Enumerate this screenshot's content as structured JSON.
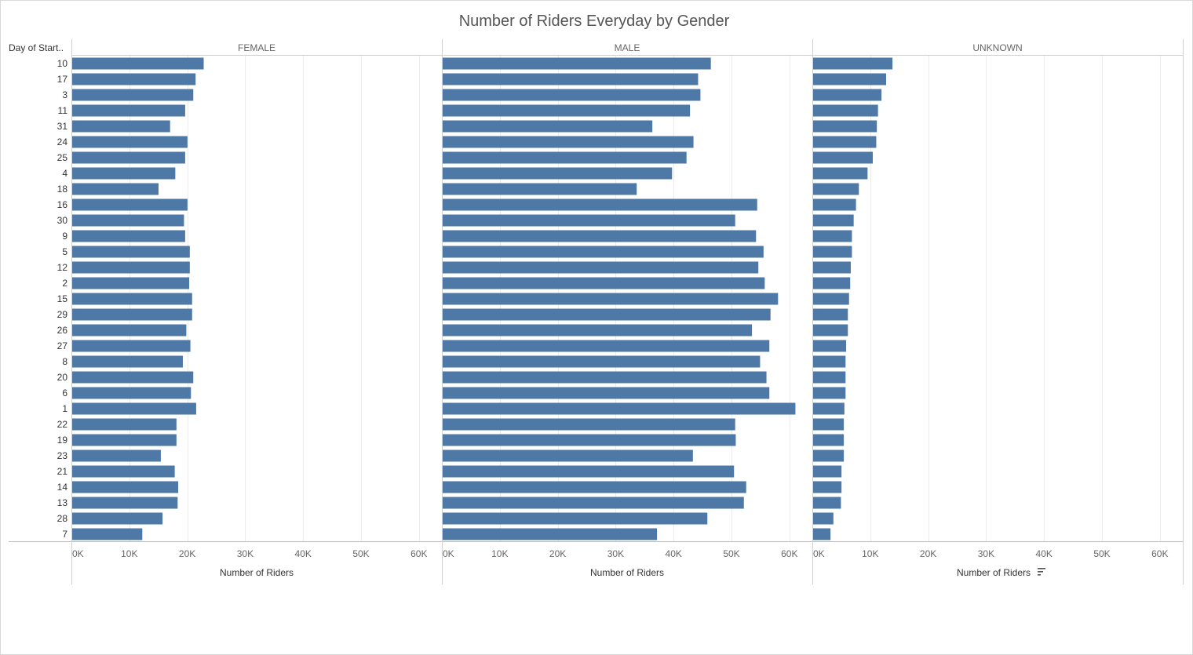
{
  "chart_data": {
    "type": "bar",
    "orientation": "horizontal",
    "title": "Number of Riders Everyday by Gender",
    "row_header": "Day of Start..",
    "xlabel": "Number of Riders",
    "xlim": [
      0,
      65000
    ],
    "xticks": [
      0,
      10000,
      20000,
      30000,
      40000,
      50000,
      60000
    ],
    "xtick_labels": [
      "0K",
      "10K",
      "20K",
      "30K",
      "40K",
      "50K",
      "60K"
    ],
    "grid": true,
    "bar_color": "#4e79a7",
    "categories": [
      "10",
      "17",
      "3",
      "11",
      "31",
      "24",
      "25",
      "4",
      "18",
      "16",
      "30",
      "9",
      "5",
      "12",
      "2",
      "15",
      "29",
      "26",
      "27",
      "8",
      "20",
      "6",
      "1",
      "22",
      "19",
      "23",
      "21",
      "14",
      "13",
      "28",
      "7"
    ],
    "series": [
      {
        "name": "FEMALE",
        "values": [
          22700,
          21300,
          20900,
          19500,
          16900,
          19900,
          19500,
          17800,
          14900,
          19900,
          19300,
          19500,
          20300,
          20300,
          20200,
          20700,
          20700,
          19700,
          20400,
          19100,
          20900,
          20500,
          21400,
          18000,
          18000,
          15300,
          17700,
          18300,
          18200,
          15600,
          12100
        ]
      },
      {
        "name": "MALE",
        "values": [
          46300,
          44100,
          44500,
          42700,
          36200,
          43300,
          42100,
          39600,
          33500,
          54300,
          50500,
          54100,
          55400,
          54500,
          55600,
          57900,
          56600,
          53400,
          56400,
          54800,
          55900,
          56400,
          60900,
          50500,
          50600,
          43200,
          50300,
          52400,
          52000,
          45700,
          37000
        ]
      },
      {
        "name": "UNKNOWN",
        "values": [
          13700,
          12600,
          11800,
          11200,
          11000,
          10900,
          10300,
          9400,
          7900,
          7400,
          7000,
          6700,
          6700,
          6500,
          6400,
          6200,
          6000,
          6000,
          5700,
          5600,
          5600,
          5600,
          5400,
          5300,
          5300,
          5300,
          4900,
          4900,
          4800,
          3500,
          3000
        ]
      }
    ],
    "sort_indicator_on": "UNKNOWN"
  },
  "icons": {
    "sort": "sort-descending-icon"
  }
}
